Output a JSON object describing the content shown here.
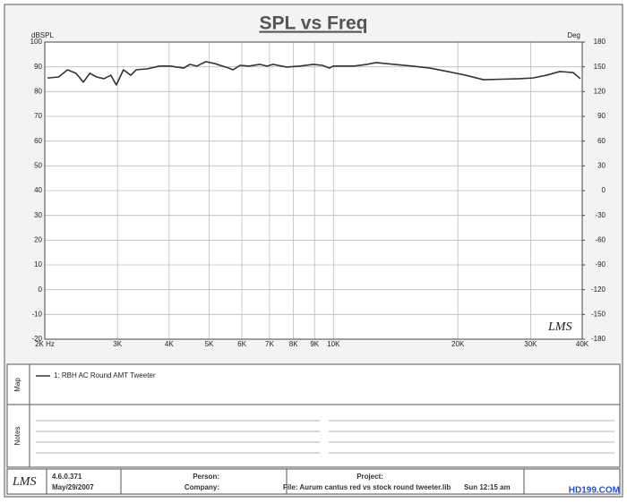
{
  "chart_data": {
    "type": "line",
    "title": "SPL vs Freq",
    "y_label": "dBSPL",
    "y2_label": "Deg",
    "x": [
      2030,
      2160,
      2270,
      2380,
      2480,
      2570,
      2670,
      2780,
      2890,
      2980,
      3100,
      3230,
      3330,
      3550,
      3790,
      4020,
      4340,
      4490,
      4670,
      4910,
      5160,
      5570,
      5710,
      5940,
      6240,
      6630,
      6900,
      7140,
      7700,
      8300,
      8940,
      9400,
      9780,
      9980,
      11200,
      12060,
      12680,
      14020,
      15490,
      17110,
      18910,
      20890,
      23080,
      25510,
      28190,
      30390,
      32750,
      35290,
      38030,
      39580
    ],
    "series": [
      {
        "name": "1: RBH AC Round AMT Tweeter",
        "color": "#333333",
        "values": [
          85.5,
          85.9,
          88.8,
          87.4,
          83.8,
          87.4,
          85.9,
          85.2,
          86.6,
          82.7,
          88.8,
          86.6,
          88.8,
          89.2,
          90.3,
          90.3,
          89.5,
          91.0,
          90.3,
          92.1,
          91.3,
          89.5,
          88.8,
          90.6,
          90.3,
          91.0,
          90.3,
          91.0,
          89.9,
          90.3,
          91.0,
          90.6,
          89.5,
          90.3,
          90.3,
          91.0,
          91.7,
          91.0,
          90.3,
          89.5,
          88.1,
          86.6,
          84.8,
          85.0,
          85.2,
          85.5,
          86.6,
          88.1,
          87.7,
          85.2
        ]
      }
    ],
    "xlim": [
      2000,
      40000
    ],
    "log_x": true,
    "xticks": [
      {
        "value": 2000,
        "label": "2K Hz"
      },
      {
        "value": 3000,
        "label": "3K"
      },
      {
        "value": 4000,
        "label": "4K"
      },
      {
        "value": 5000,
        "label": "5K"
      },
      {
        "value": 6000,
        "label": "6K"
      },
      {
        "value": 7000,
        "label": "7K"
      },
      {
        "value": 8000,
        "label": "8K"
      },
      {
        "value": 9000,
        "label": "9K"
      },
      {
        "value": 10000,
        "label": "10K"
      },
      {
        "value": 20000,
        "label": "20K"
      },
      {
        "value": 30000,
        "label": "30K"
      },
      {
        "value": 40000,
        "label": "40K"
      }
    ],
    "ylim": [
      -20,
      100
    ],
    "yticks": [
      -20,
      -10,
      0,
      10,
      20,
      30,
      40,
      50,
      60,
      70,
      80,
      90,
      100
    ],
    "y2lim": [
      -180,
      180
    ],
    "y2ticks": [
      -180,
      -150,
      -120,
      -90,
      -60,
      -30,
      0,
      30,
      60,
      90,
      120,
      150,
      180
    ],
    "grid": true
  },
  "logo": "LMS",
  "panels": {
    "map_label": "Map",
    "notes_label": "Notes"
  },
  "footer": {
    "version": "4.6.0.371",
    "date": "May/29/2007",
    "person": "Person:",
    "company": "Company:",
    "project": "Project:",
    "file": "File: Aurum cantus red vs stock round tweeter.lib",
    "time": "Sun 12:15 am"
  },
  "watermark": "HD199.COM"
}
